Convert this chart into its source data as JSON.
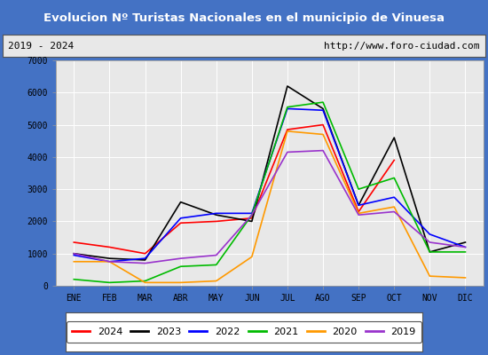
{
  "title": "Evolucion Nº Turistas Nacionales en el municipio de Vinuesa",
  "subtitle_left": "2019 - 2024",
  "subtitle_right": "http://www.foro-ciudad.com",
  "months": [
    "ENE",
    "FEB",
    "MAR",
    "ABR",
    "MAY",
    "JUN",
    "JUL",
    "AGO",
    "SEP",
    "OCT",
    "NOV",
    "DIC"
  ],
  "ylim": [
    0,
    7000
  ],
  "yticks": [
    0,
    1000,
    2000,
    3000,
    4000,
    5000,
    6000,
    7000
  ],
  "series": {
    "2024": {
      "color": "#ff0000",
      "data": [
        1350,
        1200,
        1000,
        1950,
        2000,
        2100,
        4850,
        5000,
        2300,
        3900,
        null,
        null
      ]
    },
    "2023": {
      "color": "#000000",
      "data": [
        1000,
        850,
        800,
        2600,
        2200,
        2000,
        6200,
        5500,
        2500,
        4600,
        1050,
        1350
      ]
    },
    "2022": {
      "color": "#0000ff",
      "data": [
        950,
        750,
        850,
        2100,
        2250,
        2250,
        5500,
        5450,
        2500,
        2750,
        1600,
        1200
      ]
    },
    "2021": {
      "color": "#00bb00",
      "data": [
        200,
        100,
        150,
        600,
        650,
        2200,
        5550,
        5700,
        3000,
        3350,
        1050,
        1050
      ]
    },
    "2020": {
      "color": "#ff9900",
      "data": [
        750,
        750,
        100,
        100,
        150,
        900,
        4800,
        4700,
        2250,
        2450,
        300,
        250
      ]
    },
    "2019": {
      "color": "#9933cc",
      "data": [
        1000,
        750,
        700,
        850,
        950,
        2200,
        4150,
        4200,
        2200,
        2300,
        1350,
        1200
      ]
    }
  },
  "legend_order": [
    "2024",
    "2023",
    "2022",
    "2021",
    "2020",
    "2019"
  ],
  "title_color": "#ffffff",
  "title_bg": "#4472c4",
  "background_color": "#f0f0f0",
  "plot_bg": "#e8e8e8",
  "grid_color": "#ffffff",
  "border_color": "#4472c4"
}
